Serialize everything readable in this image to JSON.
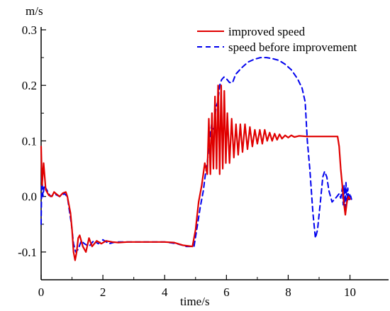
{
  "chart_data": {
    "type": "line",
    "xlabel": "time/s",
    "ylabel": "m/s",
    "xlim": [
      0,
      11.25
    ],
    "ylim": [
      -0.15,
      0.3
    ],
    "x_ticks": [
      0,
      2,
      4,
      6,
      8,
      10
    ],
    "x_tick_labels": [
      "0",
      "2",
      "4",
      "6",
      "8",
      "10"
    ],
    "y_ticks": [
      -0.1,
      0.0,
      0.1,
      0.2,
      0.3
    ],
    "y_tick_labels": [
      "-0.1",
      "0.0",
      "0.1",
      "0.2",
      "0.3"
    ],
    "grid": false,
    "legend_position": "top-right",
    "colors": {
      "improved": "#e00000",
      "before": "#0000ee"
    },
    "series": [
      {
        "name": "improved speed",
        "style": "solid",
        "color": "#e00000",
        "points": [
          [
            0.0,
            0.09
          ],
          [
            0.03,
            0.02
          ],
          [
            0.08,
            0.06
          ],
          [
            0.15,
            0.012
          ],
          [
            0.25,
            0.002
          ],
          [
            0.35,
            0.0
          ],
          [
            0.42,
            0.008
          ],
          [
            0.5,
            0.004
          ],
          [
            0.6,
            0.0
          ],
          [
            0.7,
            0.006
          ],
          [
            0.8,
            0.008
          ],
          [
            0.85,
            0.0
          ],
          [
            0.95,
            -0.03
          ],
          [
            1.0,
            -0.06
          ],
          [
            1.05,
            -0.1
          ],
          [
            1.1,
            -0.115
          ],
          [
            1.15,
            -0.1
          ],
          [
            1.2,
            -0.075
          ],
          [
            1.25,
            -0.07
          ],
          [
            1.35,
            -0.09
          ],
          [
            1.45,
            -0.1
          ],
          [
            1.55,
            -0.075
          ],
          [
            1.65,
            -0.09
          ],
          [
            1.8,
            -0.08
          ],
          [
            1.95,
            -0.085
          ],
          [
            2.1,
            -0.08
          ],
          [
            2.3,
            -0.082
          ],
          [
            2.5,
            -0.083
          ],
          [
            2.8,
            -0.082
          ],
          [
            3.2,
            -0.082
          ],
          [
            3.6,
            -0.082
          ],
          [
            4.0,
            -0.082
          ],
          [
            4.3,
            -0.083
          ],
          [
            4.6,
            -0.088
          ],
          [
            4.9,
            -0.09
          ],
          [
            5.0,
            -0.06
          ],
          [
            5.1,
            -0.01
          ],
          [
            5.2,
            0.02
          ],
          [
            5.3,
            0.06
          ],
          [
            5.38,
            0.04
          ],
          [
            5.43,
            0.14
          ],
          [
            5.48,
            0.04
          ],
          [
            5.53,
            0.15
          ],
          [
            5.58,
            0.05
          ],
          [
            5.63,
            0.18
          ],
          [
            5.68,
            0.05
          ],
          [
            5.73,
            0.2
          ],
          [
            5.78,
            0.04
          ],
          [
            5.83,
            0.2
          ],
          [
            5.88,
            0.05
          ],
          [
            5.93,
            0.19
          ],
          [
            5.98,
            0.06
          ],
          [
            6.03,
            0.15
          ],
          [
            6.1,
            0.06
          ],
          [
            6.17,
            0.14
          ],
          [
            6.24,
            0.07
          ],
          [
            6.31,
            0.13
          ],
          [
            6.38,
            0.075
          ],
          [
            6.45,
            0.13
          ],
          [
            6.52,
            0.08
          ],
          [
            6.6,
            0.13
          ],
          [
            6.68,
            0.085
          ],
          [
            6.76,
            0.125
          ],
          [
            6.84,
            0.09
          ],
          [
            6.92,
            0.12
          ],
          [
            7.0,
            0.095
          ],
          [
            7.08,
            0.12
          ],
          [
            7.16,
            0.095
          ],
          [
            7.24,
            0.12
          ],
          [
            7.32,
            0.1
          ],
          [
            7.4,
            0.115
          ],
          [
            7.48,
            0.1
          ],
          [
            7.56,
            0.113
          ],
          [
            7.64,
            0.102
          ],
          [
            7.72,
            0.112
          ],
          [
            7.8,
            0.104
          ],
          [
            7.9,
            0.11
          ],
          [
            8.0,
            0.106
          ],
          [
            8.1,
            0.11
          ],
          [
            8.2,
            0.107
          ],
          [
            8.35,
            0.109
          ],
          [
            8.6,
            0.108
          ],
          [
            9.0,
            0.108
          ],
          [
            9.4,
            0.108
          ],
          [
            9.6,
            0.108
          ],
          [
            9.65,
            0.09
          ],
          [
            9.7,
            0.05
          ],
          [
            9.75,
            0.02
          ],
          [
            9.8,
            -0.01
          ],
          [
            9.85,
            -0.033
          ],
          [
            9.9,
            -0.01
          ],
          [
            9.95,
            0.0
          ],
          [
            10.0,
            -0.005
          ]
        ]
      },
      {
        "name": "speed before improvement",
        "style": "dashed",
        "color": "#0000ee",
        "points": [
          [
            0.0,
            -0.05
          ],
          [
            0.02,
            0.04
          ],
          [
            0.06,
            0.0
          ],
          [
            0.1,
            0.02
          ],
          [
            0.2,
            0.01
          ],
          [
            0.3,
            0.0
          ],
          [
            0.45,
            0.004
          ],
          [
            0.6,
            0.0
          ],
          [
            0.75,
            0.005
          ],
          [
            0.85,
            0.0
          ],
          [
            0.9,
            -0.02
          ],
          [
            0.98,
            -0.05
          ],
          [
            1.05,
            -0.085
          ],
          [
            1.12,
            -0.1
          ],
          [
            1.2,
            -0.095
          ],
          [
            1.3,
            -0.08
          ],
          [
            1.4,
            -0.085
          ],
          [
            1.55,
            -0.09
          ],
          [
            1.7,
            -0.08
          ],
          [
            1.85,
            -0.085
          ],
          [
            2.0,
            -0.078
          ],
          [
            2.2,
            -0.085
          ],
          [
            2.4,
            -0.082
          ],
          [
            2.8,
            -0.082
          ],
          [
            3.2,
            -0.082
          ],
          [
            3.6,
            -0.082
          ],
          [
            4.0,
            -0.082
          ],
          [
            4.4,
            -0.085
          ],
          [
            4.7,
            -0.09
          ],
          [
            4.95,
            -0.09
          ],
          [
            5.05,
            -0.055
          ],
          [
            5.15,
            -0.02
          ],
          [
            5.25,
            0.01
          ],
          [
            5.32,
            0.04
          ],
          [
            5.38,
            0.06
          ],
          [
            5.45,
            0.1
          ],
          [
            5.52,
            0.13
          ],
          [
            5.6,
            0.12
          ],
          [
            5.66,
            0.16
          ],
          [
            5.72,
            0.17
          ],
          [
            5.78,
            0.2
          ],
          [
            5.84,
            0.21
          ],
          [
            5.92,
            0.215
          ],
          [
            6.0,
            0.212
          ],
          [
            6.1,
            0.205
          ],
          [
            6.2,
            0.205
          ],
          [
            6.3,
            0.22
          ],
          [
            6.5,
            0.232
          ],
          [
            6.7,
            0.242
          ],
          [
            6.9,
            0.247
          ],
          [
            7.1,
            0.25
          ],
          [
            7.3,
            0.25
          ],
          [
            7.5,
            0.248
          ],
          [
            7.7,
            0.245
          ],
          [
            7.9,
            0.238
          ],
          [
            8.1,
            0.228
          ],
          [
            8.3,
            0.212
          ],
          [
            8.45,
            0.195
          ],
          [
            8.55,
            0.17
          ],
          [
            8.62,
            0.1
          ],
          [
            8.7,
            0.05
          ],
          [
            8.8,
            -0.03
          ],
          [
            8.88,
            -0.075
          ],
          [
            8.95,
            -0.06
          ],
          [
            9.05,
            -0.005
          ],
          [
            9.12,
            0.035
          ],
          [
            9.18,
            0.045
          ],
          [
            9.25,
            0.035
          ],
          [
            9.32,
            0.01
          ],
          [
            9.42,
            -0.01
          ],
          [
            9.55,
            -0.002
          ],
          [
            9.65,
            0.005
          ],
          [
            9.7,
            -0.003
          ],
          [
            9.75,
            0.015
          ],
          [
            9.78,
            -0.015
          ],
          [
            9.81,
            0.02
          ],
          [
            9.84,
            -0.02
          ],
          [
            9.87,
            0.025
          ],
          [
            9.9,
            -0.012
          ],
          [
            9.93,
            0.015
          ],
          [
            9.96,
            -0.008
          ],
          [
            10.0,
            0.005
          ],
          [
            10.05,
            -0.005
          ]
        ]
      }
    ]
  }
}
